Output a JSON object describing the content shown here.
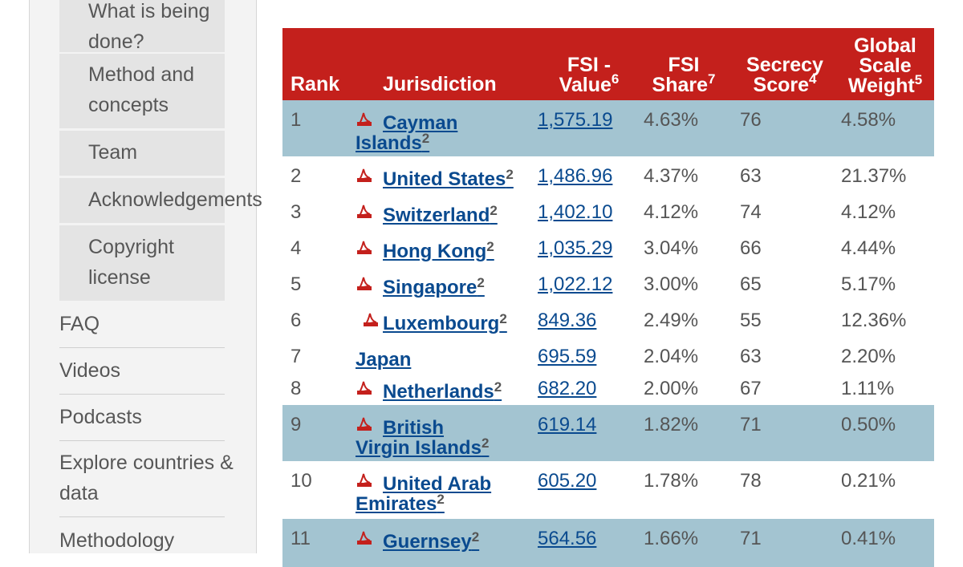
{
  "sidebar": {
    "sub_items": [
      {
        "label": "What is being done?"
      },
      {
        "label": "Method and concepts"
      },
      {
        "label": "Team"
      },
      {
        "label": "Acknowledgements"
      },
      {
        "label": "Copyright license"
      }
    ],
    "nav_items": [
      {
        "label": "FAQ"
      },
      {
        "label": "Videos"
      },
      {
        "label": "Podcasts"
      },
      {
        "label": "Explore countries & data"
      },
      {
        "label": "Methodology"
      }
    ]
  },
  "table": {
    "headers": {
      "rank": "Rank",
      "jurisdiction": "Jurisdiction",
      "fsi_value": "FSI - Value",
      "fsi_value_note": "6",
      "fsi_share": "FSI Share",
      "fsi_share_note": "7",
      "secrecy": "Secrecy Score",
      "secrecy_note": "4",
      "gsw": "Global Scale Weight",
      "gsw_note": "5"
    },
    "rows": [
      {
        "rank": "1",
        "name": "Cayman Islands",
        "note": "2",
        "value": "1,575.19",
        "share": "4.63%",
        "secrecy": "76",
        "gsw": "4.58%"
      },
      {
        "rank": "2",
        "name": "United States",
        "note": "2",
        "value": "1,486.96",
        "share": "4.37%",
        "secrecy": "63",
        "gsw": "21.37%"
      },
      {
        "rank": "3",
        "name": "Switzerland",
        "note": "2",
        "value": "1,402.10",
        "share": "4.12%",
        "secrecy": "74",
        "gsw": "4.12%"
      },
      {
        "rank": "4",
        "name": "Hong Kong",
        "note": "2",
        "value": "1,035.29",
        "share": "3.04%",
        "secrecy": "66",
        "gsw": "4.44%"
      },
      {
        "rank": "5",
        "name": "Singapore",
        "note": "2",
        "value": "1,022.12",
        "share": "3.00%",
        "secrecy": "65",
        "gsw": "5.17%"
      },
      {
        "rank": "6",
        "name": "Luxembourg",
        "note": "2",
        "value": "849.36",
        "share": "2.49%",
        "secrecy": "55",
        "gsw": "12.36%"
      },
      {
        "rank": "7",
        "name": "Japan",
        "note": "",
        "value": "695.59",
        "share": "2.04%",
        "secrecy": "63",
        "gsw": "2.20%"
      },
      {
        "rank": "8",
        "name": "Netherlands",
        "note": "2",
        "value": "682.20",
        "share": "2.00%",
        "secrecy": "67",
        "gsw": "1.11%"
      },
      {
        "rank": "9",
        "name": "British Virgin Islands",
        "note": "2",
        "value": "619.14",
        "share": "1.82%",
        "secrecy": "71",
        "gsw": "0.50%"
      },
      {
        "rank": "10",
        "name": "United Arab Emirates",
        "note": "2",
        "value": "605.20",
        "share": "1.78%",
        "secrecy": "78",
        "gsw": "0.21%"
      },
      {
        "rank": "11",
        "name": "Guernsey",
        "note": "2",
        "value": "564.56",
        "share": "1.66%",
        "secrecy": "71",
        "gsw": "0.41%"
      }
    ]
  },
  "colors": {
    "header_red": "#c4201c",
    "alt_row_blue": "#a3c4d1",
    "link_blue": "#0a4a8f",
    "pdf_red": "#c4201c"
  },
  "icons": {
    "pdf": "pdf-icon"
  }
}
